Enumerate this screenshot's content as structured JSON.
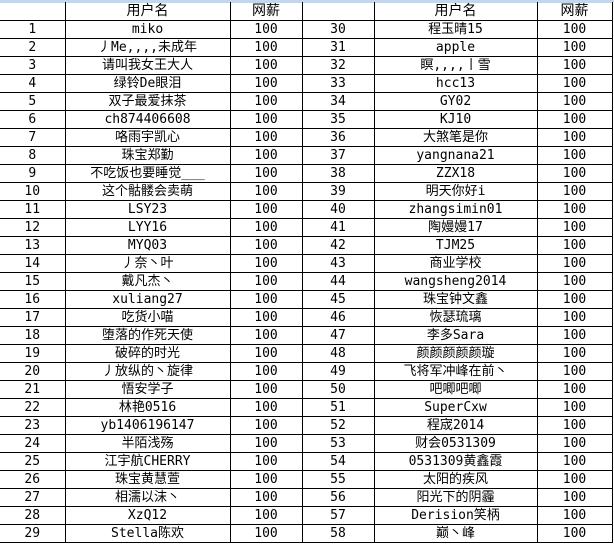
{
  "headers": {
    "index": "",
    "username": "用户名",
    "salary": "网薪"
  },
  "rows_left": [
    {
      "n": "1",
      "name": "miko",
      "salary": "100"
    },
    {
      "n": "2",
      "name": "丿Me,,,,未成年",
      "salary": "100"
    },
    {
      "n": "3",
      "name": "请叫我女王大人",
      "salary": "100"
    },
    {
      "n": "4",
      "name": "绿铃De眼泪",
      "salary": "100"
    },
    {
      "n": "5",
      "name": "双子最爱抹茶",
      "salary": "100"
    },
    {
      "n": "6",
      "name": "ch874406608",
      "salary": "100"
    },
    {
      "n": "7",
      "name": "咯雨宇凯心",
      "salary": "100"
    },
    {
      "n": "8",
      "name": "珠宝郑勤",
      "salary": "100"
    },
    {
      "n": "9",
      "name": "不吃饭也要睡觉___",
      "salary": "100"
    },
    {
      "n": "10",
      "name": "这个骷髅会卖萌",
      "salary": "100"
    },
    {
      "n": "11",
      "name": "LSY23",
      "salary": "100"
    },
    {
      "n": "12",
      "name": "LYY16",
      "salary": "100"
    },
    {
      "n": "13",
      "name": "MYQ03",
      "salary": "100"
    },
    {
      "n": "14",
      "name": "丿奈丶叶",
      "salary": "100"
    },
    {
      "n": "15",
      "name": "戴凡杰丶",
      "salary": "100"
    },
    {
      "n": "16",
      "name": "xuliang27",
      "salary": "100"
    },
    {
      "n": "17",
      "name": "吃货小喵",
      "salary": "100"
    },
    {
      "n": "18",
      "name": "堕落的作死天使",
      "salary": "100"
    },
    {
      "n": "19",
      "name": "破碎的时光",
      "salary": "100"
    },
    {
      "n": "20",
      "name": "丿放纵的丶旋律",
      "salary": "100"
    },
    {
      "n": "21",
      "name": "悟安学子",
      "salary": "100"
    },
    {
      "n": "22",
      "name": "林艳0516",
      "salary": "100"
    },
    {
      "n": "23",
      "name": "yb1406196147",
      "salary": "100"
    },
    {
      "n": "24",
      "name": "半陌浅殇",
      "salary": "100"
    },
    {
      "n": "25",
      "name": "江宇航CHERRY",
      "salary": "100"
    },
    {
      "n": "26",
      "name": "珠宝黄慧萱",
      "salary": "100"
    },
    {
      "n": "27",
      "name": "相濡以沫丶",
      "salary": "100"
    },
    {
      "n": "28",
      "name": "XzQ12",
      "salary": "100"
    },
    {
      "n": "29",
      "name": "Stella陈欢",
      "salary": "100"
    }
  ],
  "rows_right": [
    {
      "n": "30",
      "name": "程玉晴15",
      "salary": "100"
    },
    {
      "n": "31",
      "name": "apple",
      "salary": "100"
    },
    {
      "n": "32",
      "name": "瞑,,,,丨雪",
      "salary": "100"
    },
    {
      "n": "33",
      "name": "hcc13",
      "salary": "100"
    },
    {
      "n": "34",
      "name": "GY02",
      "salary": "100"
    },
    {
      "n": "35",
      "name": "KJ10",
      "salary": "100"
    },
    {
      "n": "36",
      "name": "大煞笔是你",
      "salary": "100"
    },
    {
      "n": "37",
      "name": "yangnana21",
      "salary": "100"
    },
    {
      "n": "38",
      "name": "ZZX18",
      "salary": "100"
    },
    {
      "n": "39",
      "name": "明天你好i",
      "salary": "100"
    },
    {
      "n": "40",
      "name": "zhangsimin01",
      "salary": "100"
    },
    {
      "n": "41",
      "name": "陶嫚嫚17",
      "salary": "100"
    },
    {
      "n": "42",
      "name": "TJM25",
      "salary": "100"
    },
    {
      "n": "43",
      "name": "商业学校",
      "salary": "100"
    },
    {
      "n": "44",
      "name": "wangsheng2014",
      "salary": "100"
    },
    {
      "n": "45",
      "name": "珠宝钟文鑫",
      "salary": "100"
    },
    {
      "n": "46",
      "name": "恢瑟琉璃",
      "salary": "100"
    },
    {
      "n": "47",
      "name": "李多Sara",
      "salary": "100"
    },
    {
      "n": "48",
      "name": "颜颜颜颜颜璇",
      "salary": "100"
    },
    {
      "n": "49",
      "name": "飞将军冲峰在前丶",
      "salary": "100"
    },
    {
      "n": "50",
      "name": "吧唧吧唧",
      "salary": "100"
    },
    {
      "n": "51",
      "name": "SuperCxw",
      "salary": "100"
    },
    {
      "n": "52",
      "name": "程宬2014",
      "salary": "100"
    },
    {
      "n": "53",
      "name": "财会0531309",
      "salary": "100"
    },
    {
      "n": "54",
      "name": "0531309黄鑫霞",
      "salary": "100"
    },
    {
      "n": "55",
      "name": "太阳的疾风",
      "salary": "100"
    },
    {
      "n": "56",
      "name": "阳光下的阴霾",
      "salary": "100"
    },
    {
      "n": "57",
      "name": "Derision笑柄",
      "salary": "100"
    },
    {
      "n": "58",
      "name": "巅丶峰",
      "salary": "100"
    }
  ]
}
